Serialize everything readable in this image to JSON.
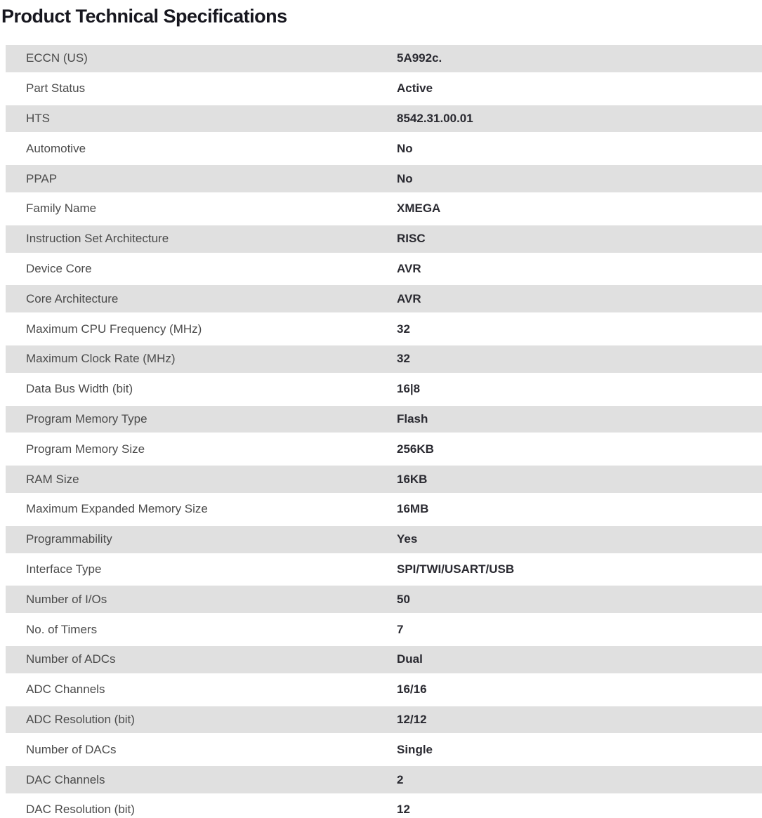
{
  "page": {
    "title": "Product Technical Specifications"
  },
  "colors": {
    "background": "#ffffff",
    "stripe": "#e0e0e0",
    "title_text": "#17171f",
    "label_text": "#4b4b4b",
    "value_text": "#2a2a31"
  },
  "table": {
    "rows": [
      {
        "label": "ECCN (US)",
        "value": "5A992c."
      },
      {
        "label": "Part Status",
        "value": "Active"
      },
      {
        "label": "HTS",
        "value": "8542.31.00.01"
      },
      {
        "label": "Automotive",
        "value": "No"
      },
      {
        "label": "PPAP",
        "value": "No"
      },
      {
        "label": "Family Name",
        "value": "XMEGA"
      },
      {
        "label": "Instruction Set Architecture",
        "value": "RISC"
      },
      {
        "label": "Device Core",
        "value": "AVR"
      },
      {
        "label": "Core Architecture",
        "value": "AVR"
      },
      {
        "label": "Maximum CPU Frequency (MHz)",
        "value": "32"
      },
      {
        "label": "Maximum Clock Rate (MHz)",
        "value": "32"
      },
      {
        "label": "Data Bus Width (bit)",
        "value": "16|8"
      },
      {
        "label": "Program Memory Type",
        "value": "Flash"
      },
      {
        "label": "Program Memory Size",
        "value": "256KB"
      },
      {
        "label": "RAM Size",
        "value": "16KB"
      },
      {
        "label": "Maximum Expanded Memory Size",
        "value": "16MB"
      },
      {
        "label": "Programmability",
        "value": "Yes"
      },
      {
        "label": "Interface Type",
        "value": "SPI/TWI/USART/USB"
      },
      {
        "label": "Number of I/Os",
        "value": "50"
      },
      {
        "label": "No. of Timers",
        "value": "7"
      },
      {
        "label": "Number of ADCs",
        "value": "Dual"
      },
      {
        "label": "ADC Channels",
        "value": "16/16"
      },
      {
        "label": "ADC Resolution (bit)",
        "value": "12/12"
      },
      {
        "label": "Number of DACs",
        "value": "Single"
      },
      {
        "label": "DAC Channels",
        "value": "2"
      },
      {
        "label": "DAC Resolution (bit)",
        "value": "12"
      }
    ]
  }
}
